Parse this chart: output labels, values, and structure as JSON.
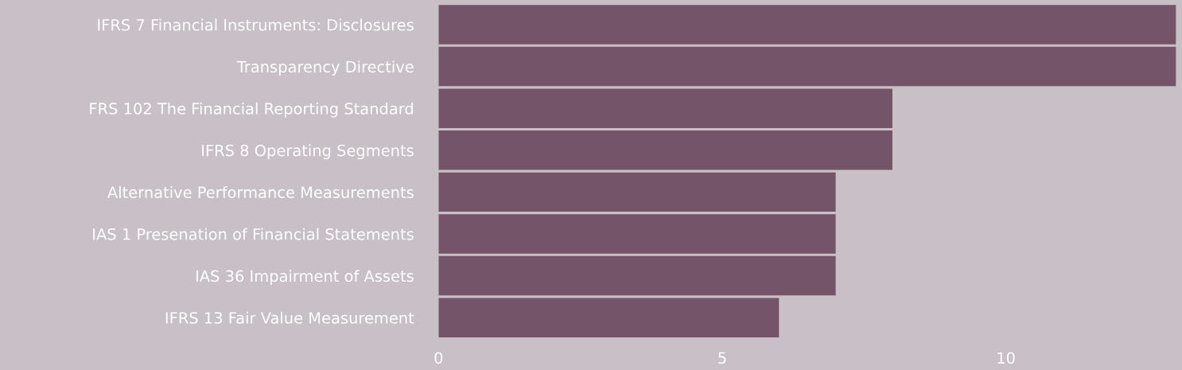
{
  "chart_data": {
    "type": "bar",
    "orientation": "horizontal",
    "categories": [
      "IFRS 7 Financial Instruments: Disclosures",
      "Transparency Directive",
      "FRS 102 The Financial Reporting Standard",
      "IFRS 8 Operating Segments",
      "Alternative Performance Measurements",
      "IAS 1 Presenation of Financial Statements",
      "IAS 36 Impairment of Assets",
      "IFRS 13 Fair Value Measurement"
    ],
    "values": [
      13,
      13,
      8,
      8,
      7,
      7,
      7,
      6
    ],
    "color": "#735469",
    "xlim": [
      0,
      13
    ],
    "xticks": [
      0,
      5,
      10
    ],
    "grid": false,
    "legend": false
  }
}
